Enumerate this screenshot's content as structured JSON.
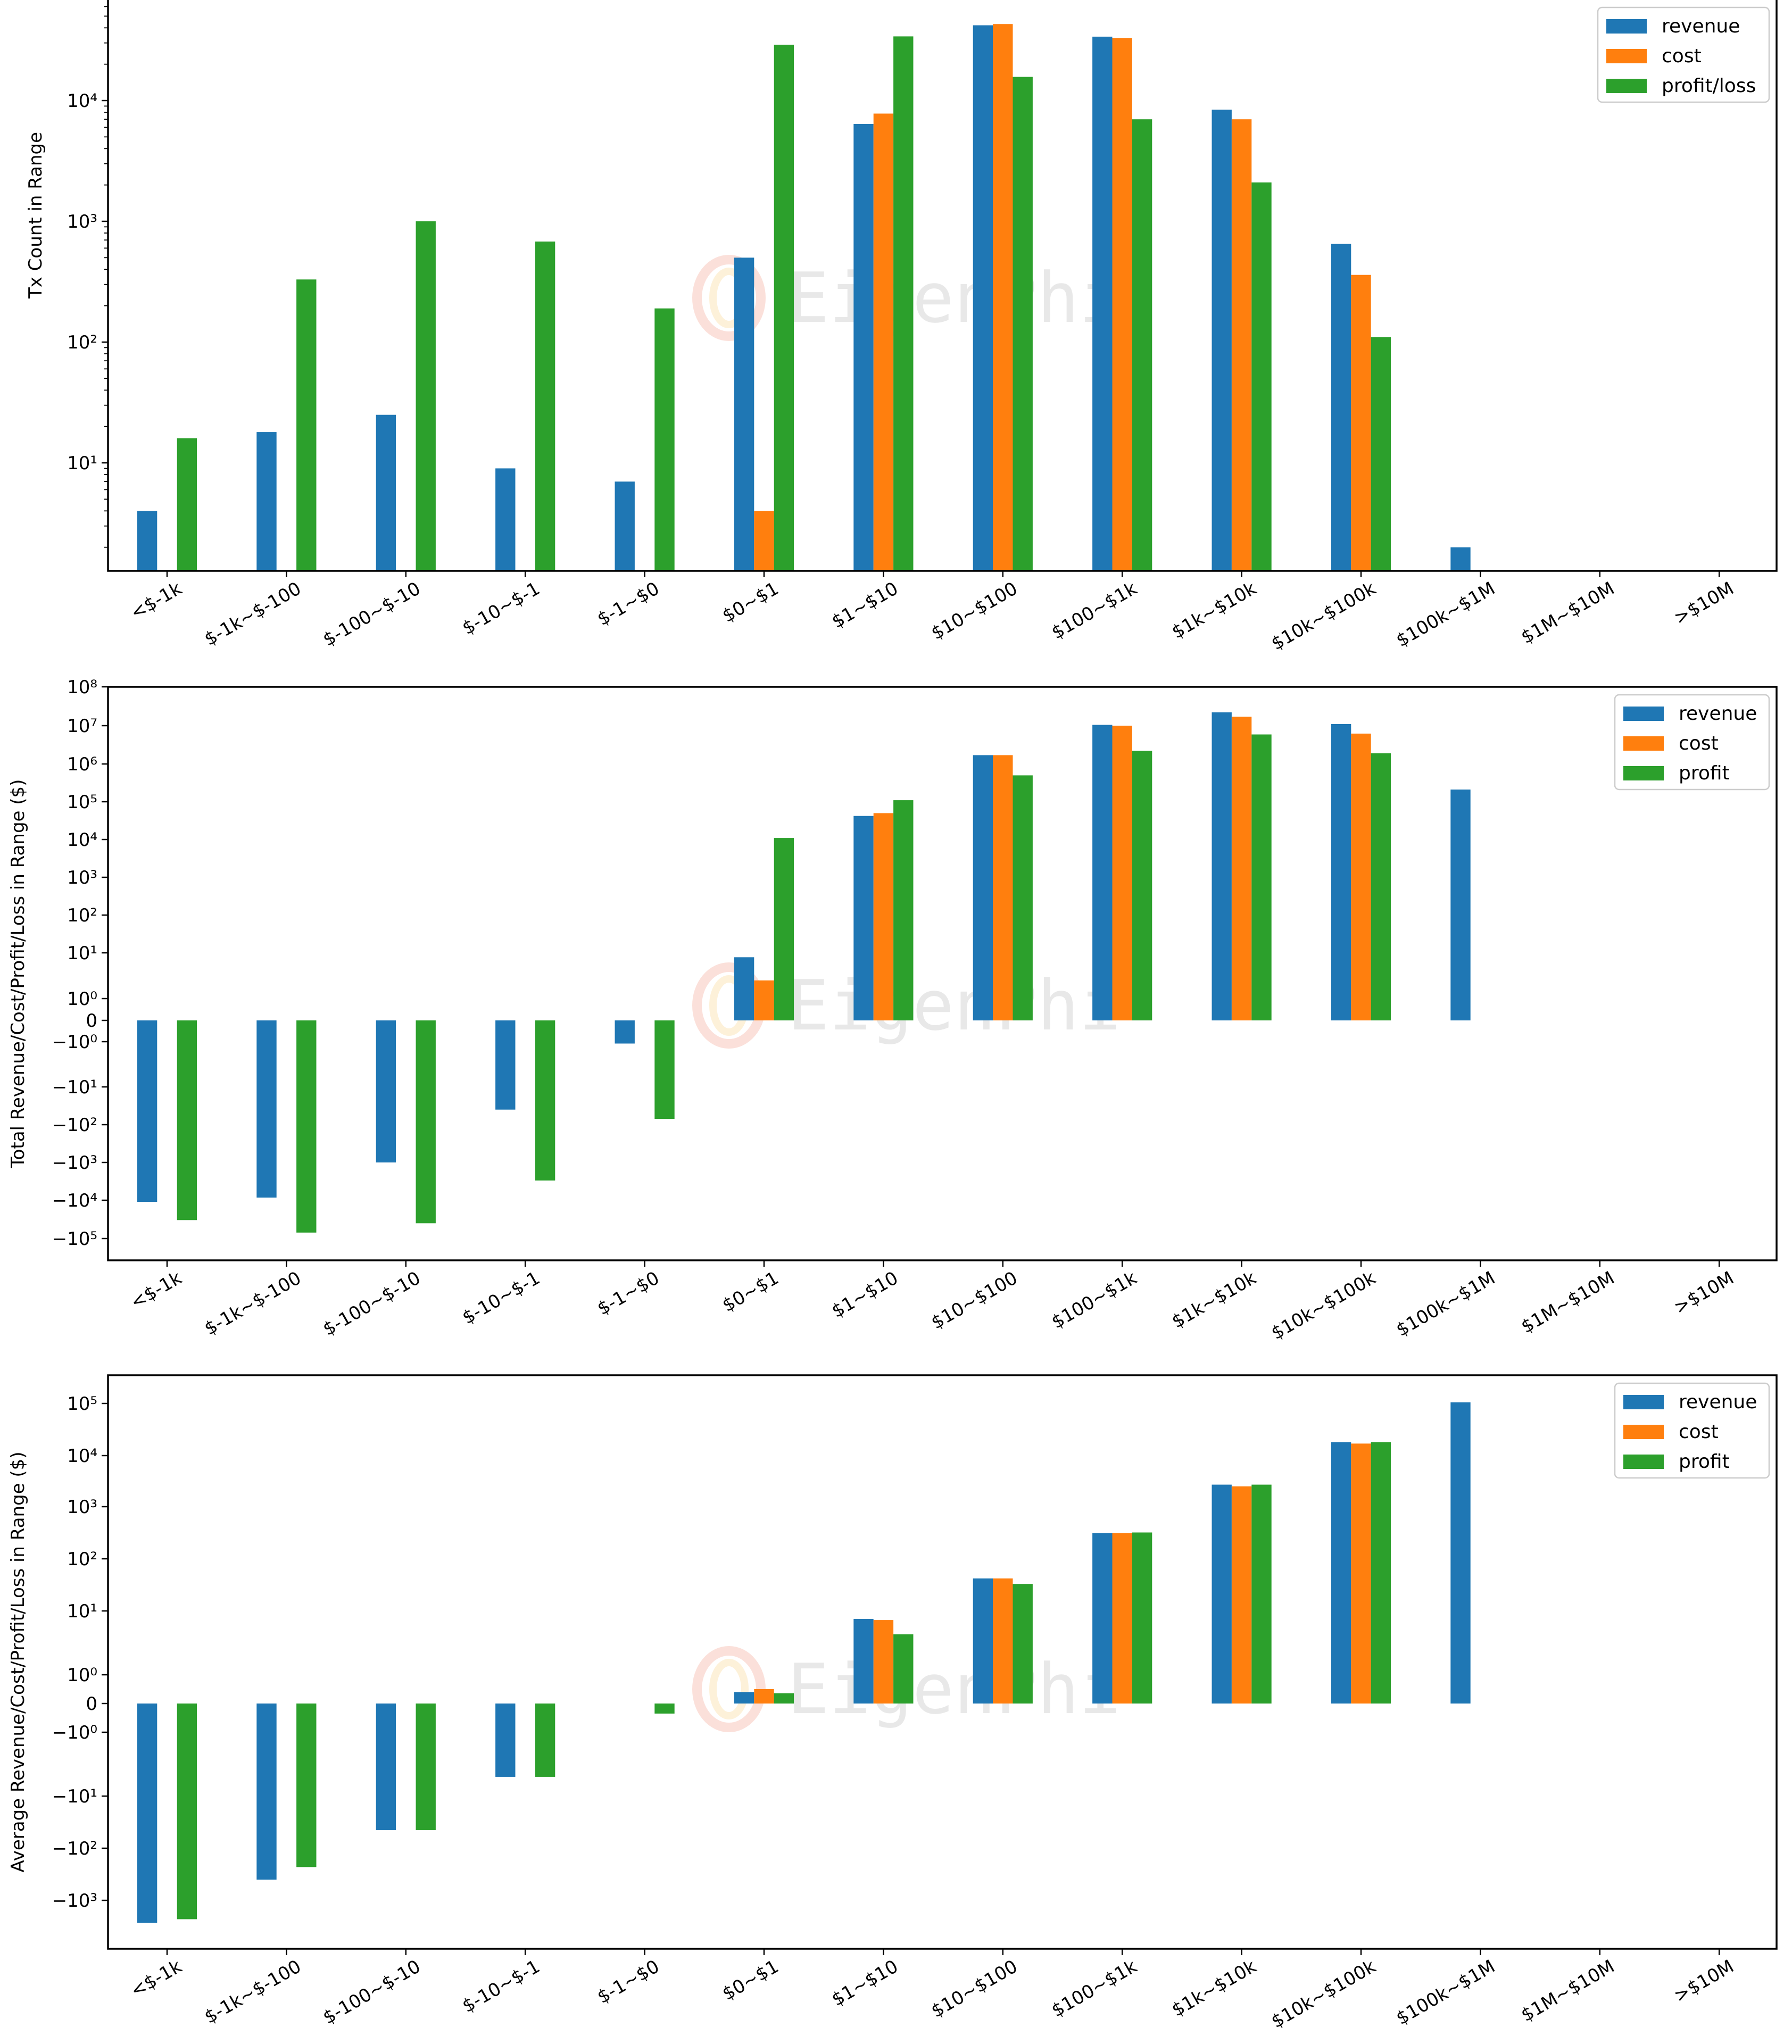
{
  "colors": {
    "revenue": "#1f77b4",
    "cost": "#ff7f0e",
    "profit": "#2ca02c"
  },
  "watermark": "EigenPhi",
  "chart_data": [
    {
      "type": "bar",
      "title": "",
      "xlabel": "",
      "ylabel": "Tx Count in Range",
      "yscale": "log",
      "ylim": [
        1.3,
        68000
      ],
      "yticks": [
        {
          "value": 10,
          "label": "10¹"
        },
        {
          "value": 100,
          "label": "10²"
        },
        {
          "value": 1000,
          "label": "10³"
        },
        {
          "value": 10000,
          "label": "10⁴"
        }
      ],
      "legend_position": "top-right",
      "categories": [
        "<$-1k",
        "$-1k~$-100",
        "$-100~$-10",
        "$-10~$-1",
        "$-1~$0",
        "$0~$1",
        "$1~$10",
        "$10~$100",
        "$100~$1k",
        "$1k~$10k",
        "$10k~$100k",
        "$100k~$1M",
        "$1M~$10M",
        ">$10M"
      ],
      "series": [
        {
          "name": "revenue",
          "values": [
            4,
            18,
            25,
            9,
            7,
            500,
            6400,
            42000,
            33800,
            8400,
            650,
            2,
            null,
            null
          ]
        },
        {
          "name": "cost",
          "values": [
            null,
            null,
            null,
            null,
            null,
            4,
            7800,
            43000,
            33000,
            7000,
            360,
            null,
            null,
            null
          ]
        },
        {
          "name": "profit/loss",
          "values": [
            16,
            330,
            1000,
            680,
            190,
            29000,
            34000,
            15700,
            7000,
            2100,
            110,
            null,
            null,
            null
          ]
        }
      ]
    },
    {
      "type": "bar",
      "title": "",
      "xlabel": "",
      "ylabel": "Total Revenue/Cost/Profit/Loss in Range ($)",
      "yscale": "symlog",
      "ylim": [
        -300000,
        100000000
      ],
      "yticks": [
        {
          "value": 100000000,
          "label": "10⁸"
        },
        {
          "value": 10000000,
          "label": "10⁷"
        },
        {
          "value": 1000000,
          "label": "10⁶"
        },
        {
          "value": 100000,
          "label": "10⁵"
        },
        {
          "value": 10000,
          "label": "10⁴"
        },
        {
          "value": 1000,
          "label": "10³"
        },
        {
          "value": 100,
          "label": "10²"
        },
        {
          "value": 10,
          "label": "10¹"
        },
        {
          "value": 1,
          "label": "10⁰"
        },
        {
          "value": 0,
          "label": "0"
        },
        {
          "value": -1,
          "label": "−10⁰"
        },
        {
          "value": -10,
          "label": "−10¹"
        },
        {
          "value": -100,
          "label": "−10²"
        },
        {
          "value": -1000,
          "label": "−10³"
        },
        {
          "value": -10000,
          "label": "−10⁴"
        },
        {
          "value": -100000,
          "label": "−10⁵"
        }
      ],
      "legend_position": "top-right",
      "categories": [
        "<$-1k",
        "$-1k~$-100",
        "$-100~$-10",
        "$-10~$-1",
        "$-1~$0",
        "$0~$1",
        "$1~$10",
        "$10~$100",
        "$100~$1k",
        "$1k~$10k",
        "$10k~$100k",
        "$100k~$1M",
        "$1M~$10M",
        ">$10M"
      ],
      "series": [
        {
          "name": "revenue",
          "values": [
            -11000,
            -8500,
            -1000,
            -40,
            -1.1,
            8,
            42000,
            1700000,
            10500000,
            22000000,
            11000000,
            210000,
            null,
            null
          ]
        },
        {
          "name": "cost",
          "values": [
            null,
            null,
            null,
            null,
            null,
            2.5,
            50000,
            1700000,
            10000000,
            17000000,
            6200000,
            null,
            null,
            null
          ]
        },
        {
          "name": "profit",
          "values": [
            -33000,
            -70000,
            -40000,
            -3000,
            -70,
            11000,
            110000,
            500000,
            2200000,
            5900000,
            1900000,
            null,
            null,
            null
          ]
        }
      ]
    },
    {
      "type": "bar",
      "title": "",
      "xlabel": "",
      "ylabel": "Average Revenue/Cost/Profit/Loss in Range ($)",
      "yscale": "symlog",
      "ylim": [
        -10000,
        300000
      ],
      "yticks": [
        {
          "value": 100000,
          "label": "10⁵"
        },
        {
          "value": 10000,
          "label": "10⁴"
        },
        {
          "value": 1000,
          "label": "10³"
        },
        {
          "value": 100,
          "label": "10²"
        },
        {
          "value": 10,
          "label": "10¹"
        },
        {
          "value": 1,
          "label": "10⁰"
        },
        {
          "value": 0,
          "label": "0"
        },
        {
          "value": -1,
          "label": "−10⁰"
        },
        {
          "value": -10,
          "label": "−10¹"
        },
        {
          "value": -100,
          "label": "−10²"
        },
        {
          "value": -1000,
          "label": "−10³"
        }
      ],
      "legend_position": "top-right",
      "categories": [
        "<$-1k",
        "$-1k~$-100",
        "$-100~$-10",
        "$-10~$-1",
        "$-1~$0",
        "$0~$1",
        "$1~$10",
        "$10~$100",
        "$100~$1k",
        "$1k~$10k",
        "$10k~$100k",
        "$100k~$1M",
        "$1M~$10M",
        ">$10M"
      ],
      "series": [
        {
          "name": "revenue",
          "values": [
            -2700,
            -400,
            -45,
            -5,
            null,
            0.4,
            7.5,
            42,
            310,
            2700,
            18000,
            105000,
            null,
            null
          ]
        },
        {
          "name": "cost",
          "values": [
            null,
            null,
            null,
            null,
            null,
            0.5,
            7.2,
            42,
            310,
            2500,
            17000,
            null,
            null,
            null
          ]
        },
        {
          "name": "profit",
          "values": [
            -2300,
            -230,
            -45,
            -5,
            -0.35,
            0.36,
            4.3,
            33,
            320,
            2700,
            18000,
            null,
            null,
            null
          ]
        }
      ]
    }
  ]
}
